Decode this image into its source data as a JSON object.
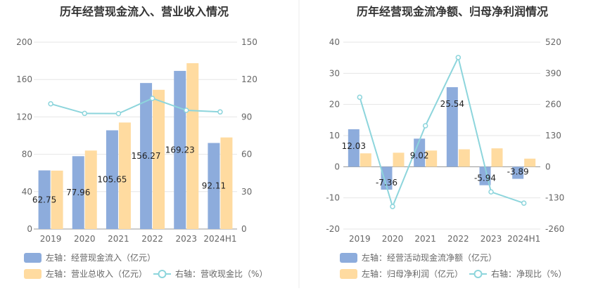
{
  "colors": {
    "bar_primary": "#8dacdc",
    "bar_secondary": "#ffdba0",
    "line": "#8dd5dc",
    "grid": "#e6e6e6",
    "divider": "#eeeeee"
  },
  "chart_data": [
    {
      "type": "bar",
      "title": "历年经营现金流入、营业收入情况",
      "categories": [
        "2019",
        "2020",
        "2021",
        "2022",
        "2023",
        "2024H1"
      ],
      "left_axis": {
        "ylim": [
          0,
          200
        ],
        "ticks": [
          "0",
          "40",
          "80",
          "120",
          "160",
          "200"
        ]
      },
      "right_axis": {
        "ylim": [
          0,
          150
        ],
        "ticks": [
          "0",
          "30",
          "60",
          "90",
          "120",
          "150"
        ]
      },
      "series": [
        {
          "name": "左轴：经营现金流入（亿元）",
          "type": "bar",
          "axis": "left",
          "color": "#8dacdc",
          "values": [
            62.75,
            77.96,
            105.65,
            156.27,
            169.23,
            92.11
          ],
          "labels": [
            "62.75",
            "77.96",
            "105.65",
            "156.27",
            "169.23",
            "92.11"
          ]
        },
        {
          "name": "左轴：营业总收入（亿元）",
          "type": "bar",
          "axis": "left",
          "color": "#ffdba0",
          "values": [
            62.5,
            84.0,
            114.0,
            149.0,
            177.5,
            98.0
          ]
        },
        {
          "name": "右轴：营收现金比（%）",
          "type": "line",
          "axis": "right",
          "color": "#8dd5dc",
          "values": [
            100.5,
            92.8,
            92.7,
            104.9,
            95.3,
            94.0
          ]
        }
      ],
      "legend_position": "bottom-left",
      "grid": true
    },
    {
      "type": "bar",
      "title": "历年经营现金流净额、归母净利润情况",
      "categories": [
        "2019",
        "2020",
        "2021",
        "2022",
        "2023",
        "2024H1"
      ],
      "left_axis": {
        "ylim": [
          -20,
          40
        ],
        "ticks": [
          "-20",
          "-10",
          "0",
          "10",
          "20",
          "30",
          "40"
        ]
      },
      "right_axis": {
        "ylim": [
          -260,
          520
        ],
        "ticks": [
          "-260",
          "-130",
          "0",
          "130",
          "260",
          "390",
          "520"
        ]
      },
      "series": [
        {
          "name": "左轴：经营活动现金流净额（亿元）",
          "type": "bar",
          "axis": "left",
          "color": "#8dacdc",
          "values": [
            12.03,
            -7.36,
            9.02,
            25.54,
            -5.94,
            -3.89
          ],
          "labels": [
            "12.03",
            "-7.36",
            "9.02",
            "25.54",
            "-5.94",
            "-3.89"
          ]
        },
        {
          "name": "左轴：归母净利润（亿元）",
          "type": "bar",
          "axis": "left",
          "color": "#ffdba0",
          "values": [
            4.3,
            4.5,
            5.2,
            5.6,
            5.9,
            2.6
          ]
        },
        {
          "name": "右轴：净现比（%）",
          "type": "line",
          "axis": "right",
          "color": "#8dd5dc",
          "values": [
            290,
            -166,
            171,
            456,
            -105,
            -152
          ]
        }
      ],
      "legend_position": "bottom-left",
      "grid": true
    }
  ]
}
